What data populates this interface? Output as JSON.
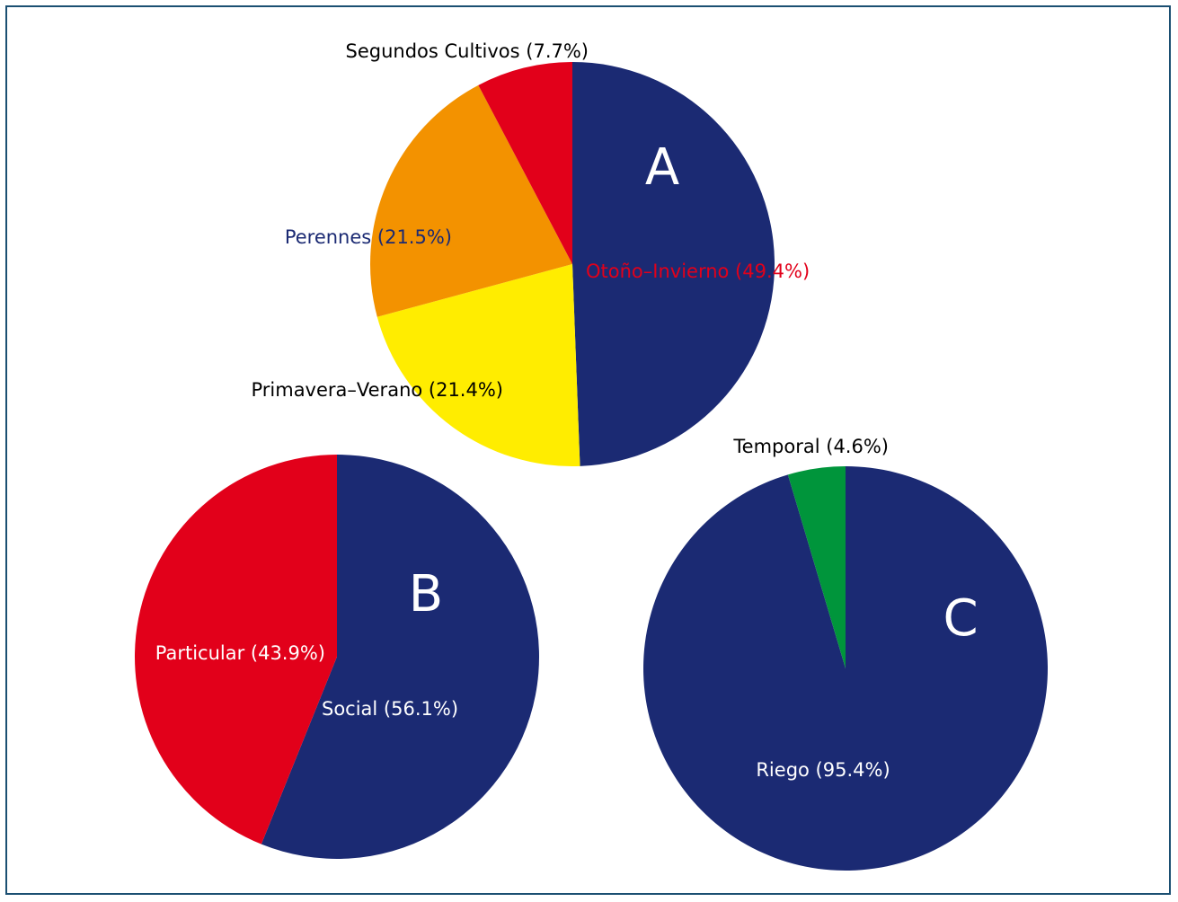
{
  "chart_data": [
    {
      "type": "pie",
      "title": "A",
      "series": [
        {
          "label": "Otoño–Invierno (49.4%)",
          "value": 49.4,
          "color": "#1b2a73",
          "label_color": "#e2001a"
        },
        {
          "label": "Primavera–Verano (21.4%)",
          "value": 21.4,
          "color": "#ffed00",
          "label_color": "#000000"
        },
        {
          "label": "Perennes (21.5%)",
          "value": 21.5,
          "color": "#f39200",
          "label_color": "#1b2a73"
        },
        {
          "label": "Segundos Cultivos (7.7%)",
          "value": 7.7,
          "color": "#e2001a",
          "label_color": "#000000"
        }
      ]
    },
    {
      "type": "pie",
      "title": "B",
      "series": [
        {
          "label": "Social (56.1%)",
          "value": 56.1,
          "color": "#1b2a73",
          "label_color": "#ffffff"
        },
        {
          "label": "Particular (43.9%)",
          "value": 43.9,
          "color": "#e2001a",
          "label_color": "#ffffff"
        }
      ]
    },
    {
      "type": "pie",
      "title": "C",
      "series": [
        {
          "label": "Riego (95.4%)",
          "value": 95.4,
          "color": "#1b2a73",
          "label_color": "#ffffff"
        },
        {
          "label": "Temporal (4.6%)",
          "value": 4.6,
          "color": "#00953b",
          "label_color": "#000000"
        }
      ]
    }
  ]
}
